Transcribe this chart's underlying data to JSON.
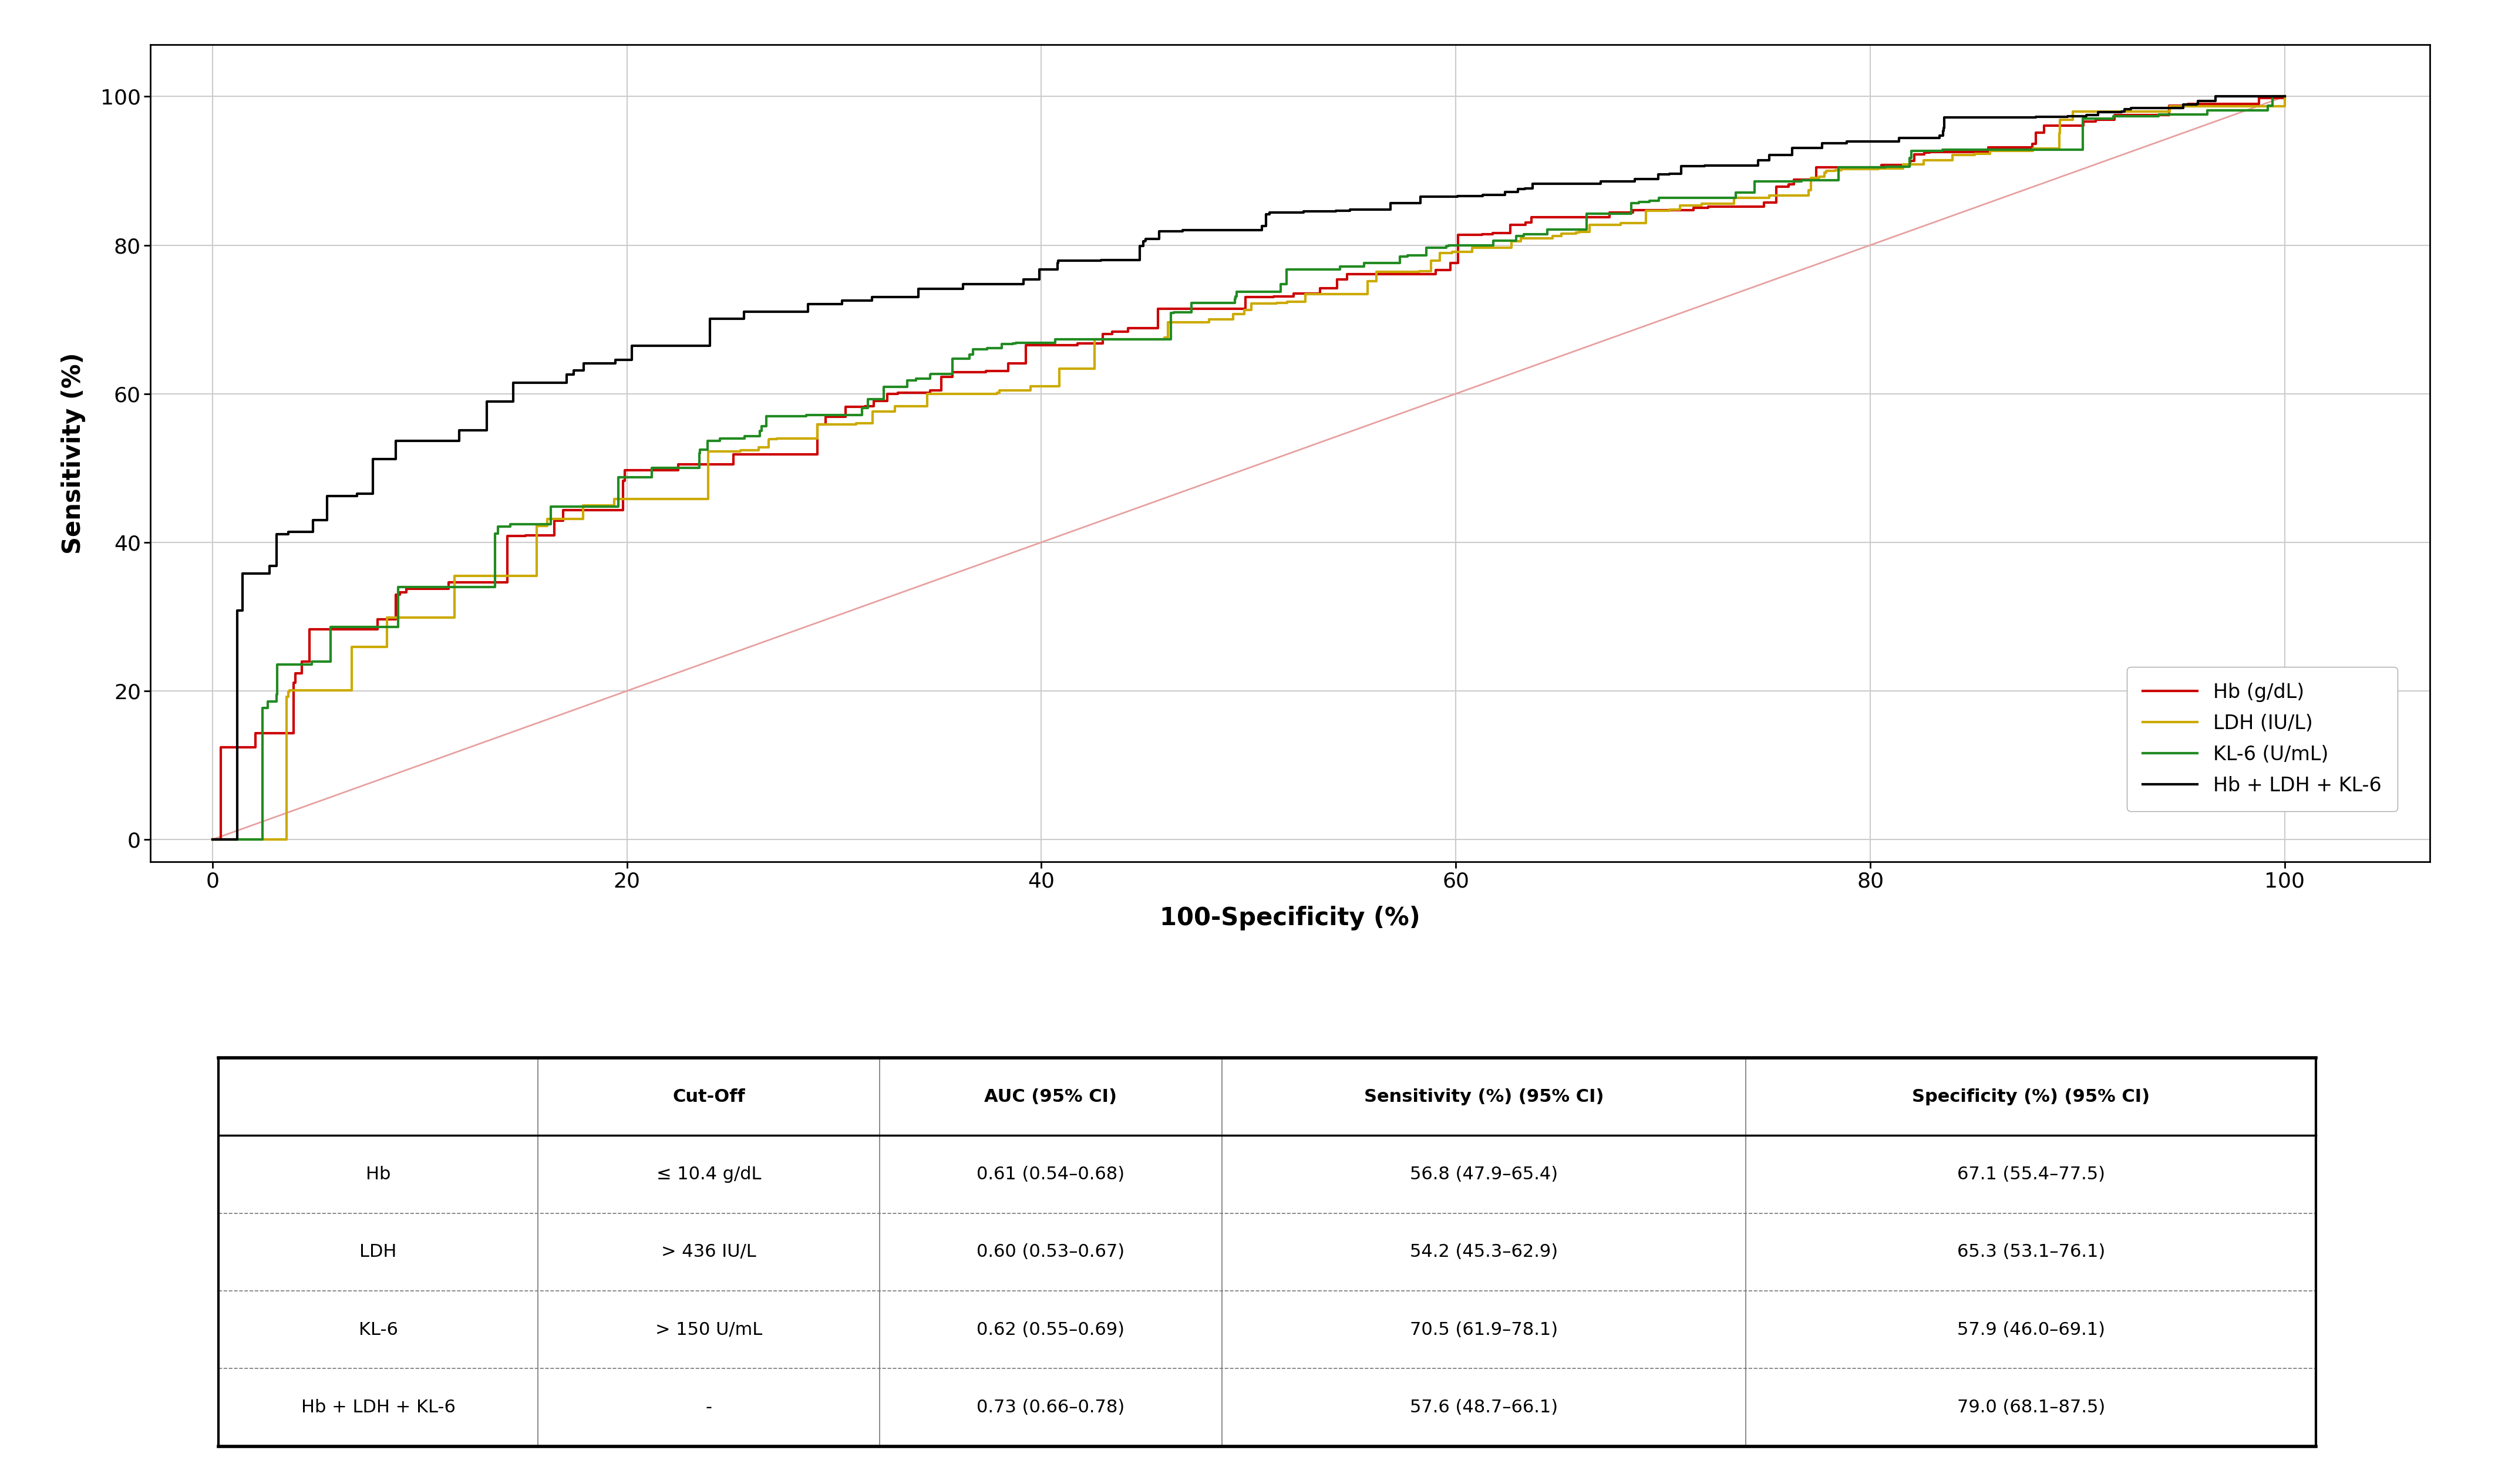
{
  "title": "",
  "xlabel": "100-Specificity (%)",
  "ylabel": "Sensitivity (%)",
  "xlim": [
    -3,
    107
  ],
  "ylim": [
    -3,
    107
  ],
  "xticks": [
    0,
    20,
    40,
    60,
    80,
    100
  ],
  "yticks": [
    0,
    20,
    40,
    60,
    80,
    100
  ],
  "bg_color": "#ffffff",
  "plot_bg_color": "#ffffff",
  "grid_color": "#cccccc",
  "diagonal_color": "#e8a0a0",
  "curves": {
    "Hb": {
      "color": "#cc0000",
      "label": "Hb (g/dL)",
      "linewidth": 3.0
    },
    "LDH": {
      "color": "#ccaa00",
      "label": "LDH (IU/L)",
      "linewidth": 3.0
    },
    "KL6": {
      "color": "#228B22",
      "label": "KL-6 (U/mL)",
      "linewidth": 3.0
    },
    "combo": {
      "color": "#000000",
      "label": "Hb + LDH + KL-6",
      "linewidth": 3.0
    }
  },
  "table": {
    "headers": [
      "",
      "Cut-Off",
      "AUC (95% CI)",
      "Sensitivity (%) (95% CI)",
      "Specificity (%) (95% CI)"
    ],
    "rows": [
      [
        "Hb",
        "≤ 10.4 g/dL",
        "0.61 (0.54–0.68)",
        "56.8 (47.9–65.4)",
        "67.1 (55.4–77.5)"
      ],
      [
        "LDH",
        "> 436 IU/L",
        "0.60 (0.53–0.67)",
        "54.2 (45.3–62.9)",
        "65.3 (53.1–76.1)"
      ],
      [
        "KL-6",
        "> 150 U/mL",
        "0.62 (0.55–0.69)",
        "70.5 (61.9–78.1)",
        "57.9 (46.0–69.1)"
      ],
      [
        "Hb + LDH + KL-6",
        "-",
        "0.73 (0.66–0.78)",
        "57.6 (48.7–66.1)",
        "79.0 (68.1–87.5)"
      ]
    ]
  }
}
